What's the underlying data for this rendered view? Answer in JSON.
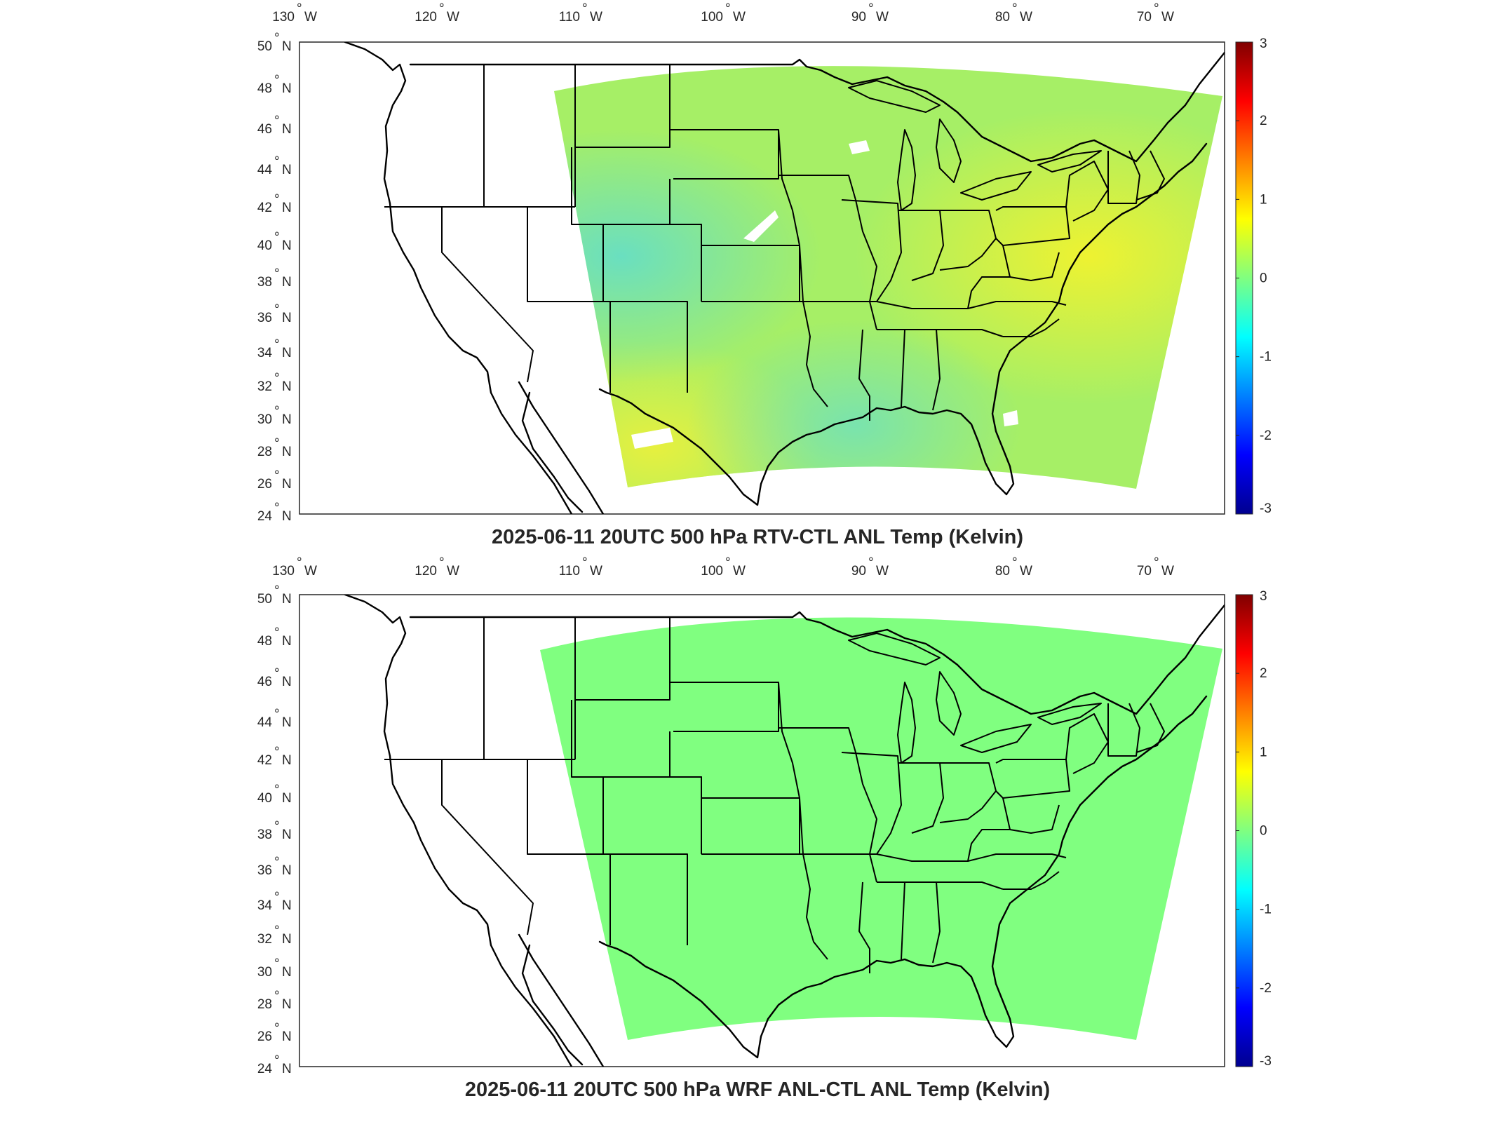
{
  "panels": [
    {
      "title": "2025-06-11 20UTC 500 hPa RTV-CTL ANL Temp (Kelvin)",
      "field": "rtv",
      "lon_ticks": [
        "130",
        "120",
        "110",
        "100",
        "90",
        "80",
        "70"
      ],
      "lon_hemi": "W",
      "lat_ticks": [
        "50",
        "48",
        "46",
        "44",
        "42",
        "40",
        "38",
        "36",
        "34",
        "32",
        "30",
        "28",
        "26",
        "24"
      ],
      "lat_hemi": "N",
      "colorbar_ticks": [
        "3",
        "2",
        "1",
        "0",
        "-1",
        "-2",
        "-3"
      ]
    },
    {
      "title": "2025-06-11 20UTC 500 hPa WRF ANL-CTL ANL Temp (Kelvin)",
      "field": "wrf",
      "lon_ticks": [
        "130",
        "120",
        "110",
        "100",
        "90",
        "80",
        "70"
      ],
      "lon_hemi": "W",
      "lat_ticks": [
        "50",
        "48",
        "46",
        "44",
        "42",
        "40",
        "38",
        "36",
        "34",
        "32",
        "30",
        "28",
        "26",
        "24"
      ],
      "lat_hemi": "N",
      "colorbar_ticks": [
        "3",
        "2",
        "1",
        "0",
        "-1",
        "-2",
        "-3"
      ]
    }
  ],
  "colorbar": {
    "min": -3,
    "max": 3,
    "colors": [
      "#00008f",
      "#0000ff",
      "#0080ff",
      "#00ffff",
      "#80ff80",
      "#ffff00",
      "#ff8000",
      "#ff0000",
      "#800000"
    ]
  },
  "field_colors": {
    "rtv_base": "#9fef6a",
    "rtv_warm": "#e8f040",
    "rtv_cool": "#66e3c4",
    "wrf_base": "#80ff80"
  }
}
